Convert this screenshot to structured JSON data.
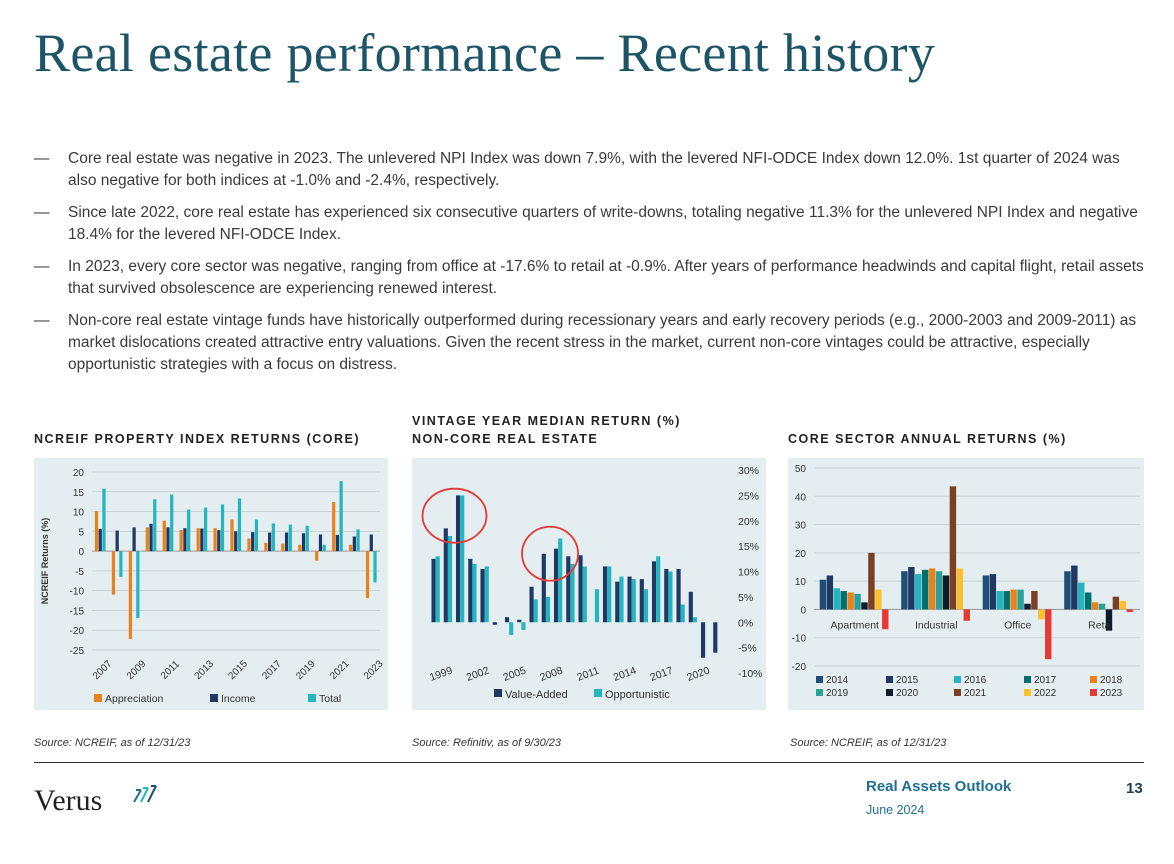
{
  "page": {
    "title": "Real estate performance – Recent history",
    "bullets": [
      "Core real estate was negative in 2023. The unlevered NPI Index was down 7.9%, with the levered NFI-ODCE Index down 12.0%. 1st quarter of 2024 was also negative for both indices at -1.0% and -2.4%, respectively.",
      "Since late 2022, core real estate has experienced six consecutive quarters of write-downs, totaling negative 11.3% for the unlevered NPI Index and negative 18.4% for the levered NFI-ODCE Index.",
      "In 2023, every core sector was negative, ranging from office at -17.6% to retail at -0.9%. After years of performance headwinds and capital flight, retail assets that survived obsolescence are experiencing renewed interest.",
      "Non-core real estate vintage funds have historically outperformed during recessionary years and early recovery periods (e.g., 2000-2003 and 2009-2011) as market dislocations created attractive entry valuations. Given the recent stress in the market, current non-core vintages could be attractive, especially opportunistic strategies with a focus on distress."
    ],
    "bullet_dash": "—"
  },
  "footer": {
    "logo_text": "Verus",
    "report_name": "Real Assets Outlook",
    "date": "June 2024",
    "page_number": "13"
  },
  "chart_data": [
    {
      "type": "bar",
      "title": "NCREIF PROPERTY INDEX RETURNS (CORE)",
      "ylabel": "NCREIF Returns (%)",
      "ylim": [
        -25,
        20
      ],
      "yticks": [
        -25,
        -20,
        -15,
        -10,
        -5,
        0,
        5,
        10,
        15,
        20
      ],
      "categories": [
        "2007",
        "2008",
        "2009",
        "2010",
        "2011",
        "2012",
        "2013",
        "2014",
        "2015",
        "2016",
        "2017",
        "2018",
        "2019",
        "2020",
        "2021",
        "2022",
        "2023"
      ],
      "x_tick_labels": [
        "2007",
        "2009",
        "2011",
        "2013",
        "2015",
        "2017",
        "2019",
        "2021",
        "2023"
      ],
      "grid": true,
      "legend_position": "bottom",
      "series": [
        {
          "name": "Appreciation",
          "color": "#e8821a",
          "values": [
            10.1,
            -11.0,
            -22.2,
            6.0,
            7.7,
            5.3,
            5.8,
            5.8,
            8.0,
            3.2,
            2.1,
            1.9,
            1.6,
            -2.4,
            12.4,
            1.6,
            -11.9
          ]
        },
        {
          "name": "Income",
          "color": "#1f3864",
          "values": [
            5.6,
            5.2,
            6.0,
            6.9,
            6.0,
            5.8,
            5.7,
            5.3,
            5.0,
            4.8,
            4.7,
            4.7,
            4.5,
            4.2,
            4.1,
            3.7,
            4.2
          ]
        },
        {
          "name": "Total",
          "color": "#25b5bf",
          "values": [
            15.8,
            -6.5,
            -16.9,
            13.1,
            14.3,
            10.5,
            11.0,
            11.8,
            13.3,
            8.0,
            7.0,
            6.7,
            6.4,
            1.6,
            17.7,
            5.5,
            -7.9
          ]
        }
      ],
      "source": "Source: NCREIF, as of 12/31/23"
    },
    {
      "type": "bar",
      "title": "VINTAGE YEAR MEDIAN RETURN (%)",
      "subtitle": "NON-CORE REAL ESTATE",
      "ylim": [
        -10,
        30
      ],
      "yticks": [
        "30%",
        "25%",
        "20%",
        "15%",
        "10%",
        "5%",
        "0%",
        "-5%",
        "-10%"
      ],
      "categories": [
        "1999",
        "2000",
        "2001",
        "2002",
        "2003",
        "2004",
        "2005",
        "2006",
        "2007",
        "2008",
        "2009",
        "2010",
        "2011",
        "2012",
        "2013",
        "2014",
        "2015",
        "2016",
        "2017",
        "2018",
        "2019",
        "2020",
        "2021",
        "2022"
      ],
      "x_tick_labels": [
        "1999",
        "2002",
        "2005",
        "2008",
        "2011",
        "2014",
        "2017",
        "2020"
      ],
      "legend_position": "bottom",
      "series": [
        {
          "name": "Value-Added",
          "color": "#1f3864",
          "values": [
            12.5,
            18.5,
            25.0,
            12.5,
            10.5,
            -0.5,
            1.0,
            0.5,
            7.0,
            13.5,
            14.5,
            13.0,
            13.2,
            null,
            11.0,
            8.0,
            9.0,
            8.5,
            12.0,
            10.5,
            10.5,
            6.0,
            -7.0,
            -6.0
          ]
        },
        {
          "name": "Opportunistic",
          "color": "#25b5bf",
          "values": [
            13.0,
            17.0,
            25.0,
            11.5,
            11.0,
            null,
            -2.5,
            -1.5,
            4.5,
            5.0,
            16.5,
            11.5,
            11.0,
            6.5,
            11.0,
            9.0,
            8.5,
            6.5,
            13.0,
            10.0,
            3.5,
            1.0,
            null,
            null
          ]
        }
      ],
      "annotations": [
        "circle around 2000-2002",
        "circle around 2008-2010"
      ],
      "source": "Source: Refinitiv, as of 9/30/23"
    },
    {
      "type": "bar",
      "title": "CORE SECTOR ANNUAL RETURNS (%)",
      "ylim": [
        -20,
        50
      ],
      "yticks": [
        -20,
        -10,
        0,
        10,
        20,
        30,
        40,
        50
      ],
      "categories": [
        "Apartment",
        "Industrial",
        "Office",
        "Retail"
      ],
      "category_labels_visible": [
        "Apartment",
        "Industrial",
        "Office",
        "Reta"
      ],
      "legend_position": "bottom",
      "series": [
        {
          "name": "2014",
          "color": "#1f4e79",
          "values": [
            10.5,
            13.5,
            12.0,
            13.5
          ]
        },
        {
          "name": "2015",
          "color": "#1f3864",
          "values": [
            12.0,
            15.0,
            12.5,
            15.5
          ]
        },
        {
          "name": "2016",
          "color": "#25b5bf",
          "values": [
            7.5,
            12.5,
            6.5,
            9.5
          ]
        },
        {
          "name": "2017",
          "color": "#00706e",
          "values": [
            6.5,
            14.0,
            6.5,
            6.0
          ]
        },
        {
          "name": "2018",
          "color": "#e8821a",
          "values": [
            6.0,
            14.5,
            7.0,
            2.5
          ]
        },
        {
          "name": "2019",
          "color": "#2aa198",
          "values": [
            5.5,
            13.5,
            7.0,
            2.0
          ]
        },
        {
          "name": "2020",
          "color": "#0d1b2a",
          "values": [
            2.5,
            12.0,
            2.0,
            -7.5
          ]
        },
        {
          "name": "2021",
          "color": "#7b3f24",
          "values": [
            20.0,
            43.5,
            6.5,
            4.5
          ]
        },
        {
          "name": "2022",
          "color": "#fbc02d",
          "values": [
            7.0,
            14.5,
            -3.5,
            3.0
          ]
        },
        {
          "name": "2023",
          "color": "#e53935",
          "values": [
            -7.0,
            -4.0,
            -17.6,
            -0.9
          ]
        }
      ],
      "source": "Source:  NCREIF, as of 12/31/23"
    }
  ]
}
